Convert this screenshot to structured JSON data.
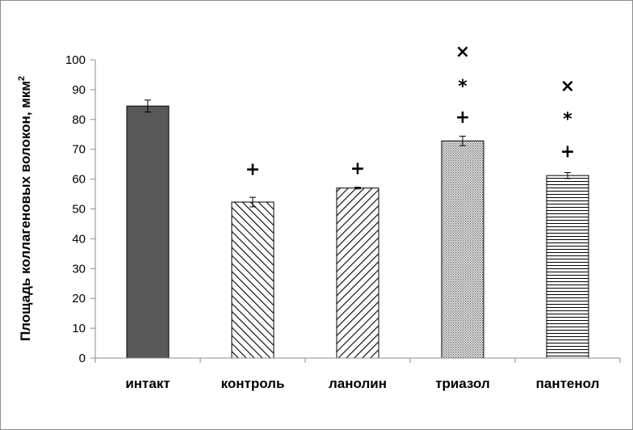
{
  "chart_data": {
    "type": "bar",
    "categories": [
      "интакт",
      "контроль",
      "ланолин",
      "триазол",
      "пантенол"
    ],
    "values": [
      84.5,
      52.3,
      57.0,
      72.8,
      61.2
    ],
    "errors": [
      2.0,
      1.6,
      0.3,
      1.6,
      1.0
    ],
    "ylabel": "Площадь коллагеновых волокон, мкм",
    "ylabel_sup": "2",
    "ylim": [
      0,
      100
    ],
    "yticks": [
      0,
      10,
      20,
      30,
      40,
      50,
      60,
      70,
      80,
      90,
      100
    ],
    "grid": false,
    "bar_styles": [
      "solid-dark",
      "diagonal-backslash",
      "diagonal-slash",
      "dotted",
      "horizontal-lines"
    ],
    "colors": {
      "dark_fill": "#595959",
      "outline": "#000000",
      "axis": "#8c8c8c"
    },
    "annotations": [
      {
        "category": "контроль",
        "marks": [
          "+"
        ],
        "marks_y": [
          63.5
        ]
      },
      {
        "category": "ланолин",
        "marks": [
          "+"
        ],
        "marks_y": [
          63.8
        ]
      },
      {
        "category": "триазол",
        "marks": [
          "+",
          "*",
          "×"
        ],
        "marks_y": [
          81,
          93,
          103
        ]
      },
      {
        "category": "пантенол",
        "marks": [
          "+",
          "*",
          "×"
        ],
        "marks_y": [
          69.5,
          82,
          91.5
        ]
      }
    ]
  }
}
